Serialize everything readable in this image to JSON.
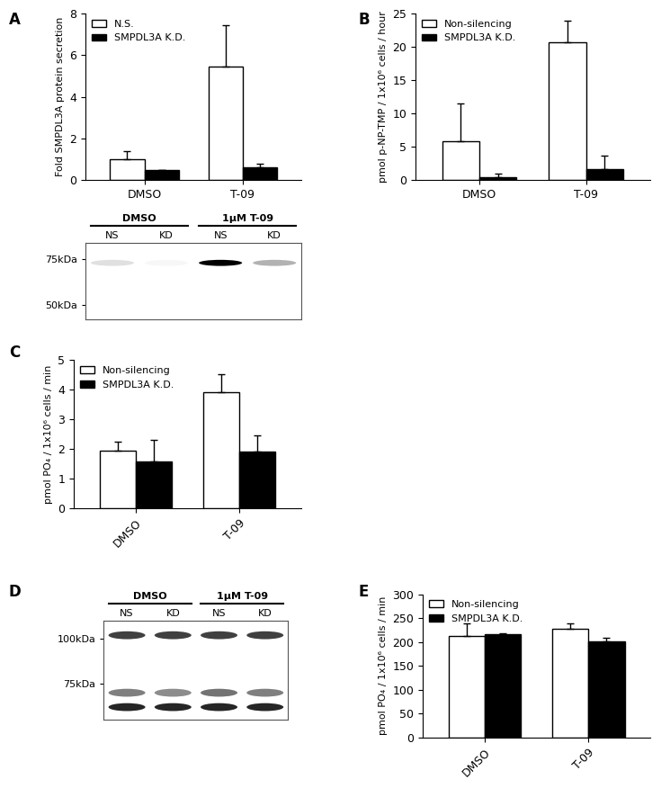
{
  "chart_data": [
    {
      "type": "bar",
      "panel": "A",
      "ylabel": "Fold SMPDL3A protein secretion",
      "categories": [
        "DMSO",
        "T-09"
      ],
      "series": [
        {
          "name": "N.S.",
          "color": "#ffffff",
          "values": [
            1.0,
            5.45
          ],
          "errors": [
            0.4,
            2.0
          ]
        },
        {
          "name": "SMPDL3A K.D.",
          "color": "#000000",
          "values": [
            0.5,
            0.6
          ],
          "errors": [
            0.0,
            0.2
          ]
        }
      ],
      "ylim": [
        0,
        8
      ],
      "yticks": [
        0,
        2,
        4,
        6,
        8
      ],
      "legend": "upper left"
    },
    {
      "type": "blot",
      "groups": [
        {
          "label": "DMSO",
          "lanes": [
            "NS",
            "KD"
          ]
        },
        {
          "label": "1μM T-09",
          "lanes": [
            "NS",
            "KD"
          ]
        }
      ],
      "ylim": [
        42,
        84
      ],
      "yticks": [
        {
          "value": 75,
          "label": "75kDa"
        },
        {
          "value": 50,
          "label": "50kDa"
        }
      ],
      "bands": [
        {
          "kda": 73,
          "intensity": [
            0.12,
            0.03,
            1.0,
            0.3
          ]
        }
      ]
    },
    {
      "type": "bar",
      "panel": "B",
      "ylabel": "pmol p-NP-TMP / 1x10⁶ cells / hour",
      "categories": [
        "DMSO",
        "T-09"
      ],
      "series": [
        {
          "name": "Non-silencing",
          "color": "#ffffff",
          "values": [
            5.9,
            20.7
          ],
          "errors": [
            5.6,
            3.2
          ]
        },
        {
          "name": "SMPDL3A K.D.",
          "color": "#000000",
          "values": [
            0.4,
            1.7
          ],
          "errors": [
            0.6,
            2.0
          ]
        }
      ],
      "ylim": [
        0,
        25
      ],
      "yticks": [
        0,
        5,
        10,
        15,
        20,
        25
      ],
      "legend": "upper left"
    },
    {
      "type": "bar",
      "panel": "C",
      "ylabel": "pmol PO₄ / 1x10⁶ cells / min",
      "categories": [
        "DMSO",
        "T-09"
      ],
      "series": [
        {
          "name": "Non-silencing",
          "color": "#ffffff",
          "values": [
            1.95,
            3.93
          ],
          "errors": [
            0.3,
            0.6
          ]
        },
        {
          "name": "SMPDL3A K.D.",
          "color": "#000000",
          "values": [
            1.6,
            1.92
          ],
          "errors": [
            0.7,
            0.55
          ]
        }
      ],
      "ylim": [
        0,
        5
      ],
      "yticks": [
        0,
        1,
        2,
        3,
        4,
        5
      ],
      "legend": "upper left"
    },
    {
      "type": "blot",
      "panel": "D",
      "groups": [
        {
          "label": "DMSO",
          "lanes": [
            "NS",
            "KD"
          ]
        },
        {
          "label": "1μM T-09",
          "lanes": [
            "NS",
            "KD"
          ]
        }
      ],
      "ylim": [
        55,
        110
      ],
      "yticks": [
        {
          "value": 100,
          "label": "100kDa"
        },
        {
          "value": 75,
          "label": "75kDa"
        }
      ],
      "bands": [
        {
          "kda": 102,
          "intensity": [
            0.75,
            0.75,
            0.75,
            0.75
          ]
        },
        {
          "kda": 70,
          "intensity": [
            0.5,
            0.45,
            0.55,
            0.5
          ]
        },
        {
          "kda": 62,
          "intensity": [
            0.85,
            0.85,
            0.85,
            0.85
          ]
        }
      ]
    },
    {
      "type": "bar",
      "panel": "E",
      "ylabel": "pmol PO₄ / 1x10⁶ cells / min",
      "categories": [
        "DMSO",
        "T-09"
      ],
      "series": [
        {
          "name": "Non-silencing",
          "color": "#ffffff",
          "values": [
            212,
            228
          ],
          "errors": [
            27,
            10
          ]
        },
        {
          "name": "SMPDL3A K.D.",
          "color": "#000000",
          "values": [
            216,
            201
          ],
          "errors": [
            2,
            8
          ]
        }
      ],
      "ylim": [
        0,
        300
      ],
      "yticks": [
        0,
        50,
        100,
        150,
        200,
        250,
        300
      ],
      "legend": "upper left"
    }
  ]
}
